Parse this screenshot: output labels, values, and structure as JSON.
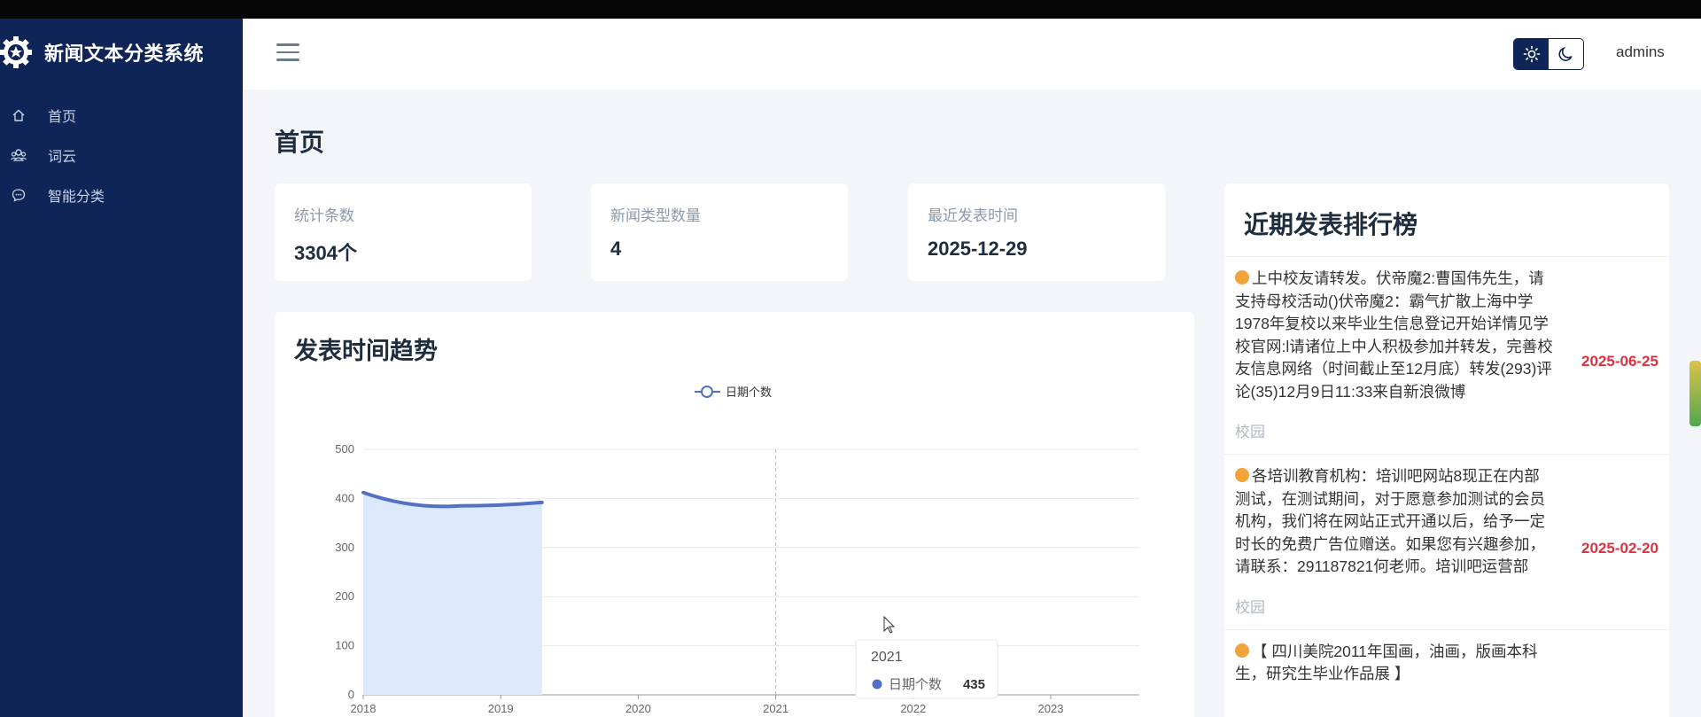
{
  "app": {
    "title": "新闻文本分类系统"
  },
  "sidebar": {
    "items": [
      {
        "label": "首页",
        "icon": "home-icon"
      },
      {
        "label": "词云",
        "icon": "users-icon"
      },
      {
        "label": "智能分类",
        "icon": "chat-icon"
      }
    ]
  },
  "header": {
    "user": "admins",
    "theme": {
      "light_icon": "sun-icon",
      "dark_icon": "moon-icon",
      "active": "light"
    }
  },
  "page": {
    "title": "首页"
  },
  "stats": [
    {
      "label": "统计条数",
      "value": "3304个"
    },
    {
      "label": "新闻类型数量",
      "value": "4"
    },
    {
      "label": "最近发表时间",
      "value": "2025-12-29"
    }
  ],
  "chart": {
    "title": "发表时间趋势",
    "tooltip": {
      "title": "2021",
      "series": "日期个数",
      "value": "435"
    }
  },
  "chart_data": {
    "type": "area",
    "legend": "日期个数",
    "legend_position": "top-center",
    "x": [
      "2018",
      "2019",
      "2020",
      "2021",
      "2022",
      "2023"
    ],
    "y_ticks": [
      "0",
      "100",
      "200",
      "300",
      "400",
      "500"
    ],
    "ylim": [
      0,
      500
    ],
    "series": [
      {
        "name": "日期个数",
        "color": "#5470c6",
        "points": [
          [
            2018.0,
            412
          ],
          [
            2018.7,
            385
          ],
          [
            2019.3,
            392
          ]
        ]
      }
    ],
    "grid": true,
    "highlight_x": "2021"
  },
  "ranking": {
    "title": "近期发表排行榜",
    "items": [
      {
        "text": "上中校友请转发。伏帝魔2:曹国伟先生，请支持母校活动()伏帝魔2：霸气扩散上海中学1978年复校以来毕业生信息登记开始详情见学校官网:l请诸位上中人积极参加并转发，完善校友信息网络（时间截止至12月底）转发(293)评论(35)12月9日11:33来自新浪微博",
        "date": "2025-06-25",
        "tag": "校园"
      },
      {
        "text": "各培训教育机构：培训吧网站8现正在内部测试，在测试期间，对于愿意参加测试的会员机构，我们将在网站正式开通以后，给予一定时长的免费广告位赠送。如果您有兴趣参加，请联系：291187821何老师。培训吧运营部",
        "date": "2025-02-20",
        "tag": "校园"
      },
      {
        "text": "【 四川美院2011年国画，油画，版画本科生，研究生毕业作品展 】",
        "date": "",
        "tag": ""
      }
    ]
  }
}
